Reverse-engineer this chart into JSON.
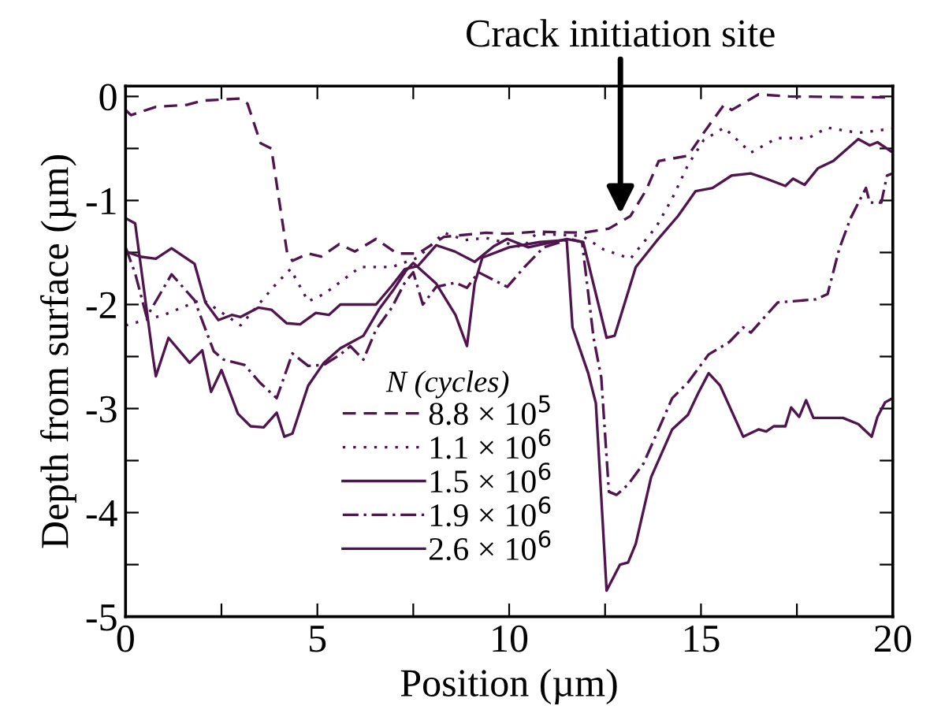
{
  "chart_data": {
    "type": "line",
    "xlabel": "Position (µm)",
    "ylabel": "Depth from surface (µm)",
    "legend_title": "N (cycles)",
    "legend": "bottom",
    "grid": false,
    "marker": "none",
    "xlim": [
      0,
      20
    ],
    "ylim": [
      -5,
      0.1
    ],
    "xticks": [
      0,
      {
        "value": 2.5,
        "label": null
      },
      5,
      {
        "value": 7.5,
        "label": null
      },
      10,
      {
        "value": 12.5,
        "label": null
      },
      15,
      {
        "value": 17.5,
        "label": null
      },
      20
    ],
    "yticks": [
      0,
      {
        "value": -0.5,
        "label": null
      },
      -1,
      {
        "value": -1.5,
        "label": null
      },
      -2,
      {
        "value": -2.5,
        "label": null
      },
      -3,
      {
        "value": -3.5,
        "label": null
      },
      -4,
      {
        "value": -4.5,
        "label": null
      },
      -5
    ],
    "annotations": [
      {
        "text": "Crack initiation site",
        "x": 12.9,
        "y": -1.13
      }
    ],
    "series": [
      {
        "name": "8.8 × 10$^{5}$",
        "color": "#50144f",
        "line_style": "dashed",
        "x": [
          0,
          0.14,
          0.79,
          1.61,
          2.02,
          2.98,
          3.18,
          3.52,
          3.8,
          4.21,
          4.35,
          4.76,
          5.1,
          5.57,
          5.98,
          6.53,
          7.08,
          7.62,
          8.3,
          9.4,
          9.95,
          10.7,
          11.93,
          12.6,
          13.16,
          13.57,
          13.9,
          14.66,
          15.07,
          15.6,
          15.8,
          16.5,
          17.3,
          20
        ],
        "values": [
          -0.13,
          -0.18,
          -0.1,
          -0.08,
          -0.04,
          -0.02,
          -0.07,
          -0.45,
          -0.5,
          -1.5,
          -1.58,
          -1.51,
          -1.54,
          -1.42,
          -1.49,
          -1.37,
          -1.51,
          -1.51,
          -1.35,
          -1.31,
          -1.32,
          -1.3,
          -1.31,
          -1.27,
          -1.15,
          -0.9,
          -0.62,
          -0.57,
          -0.35,
          -0.08,
          -0.13,
          0.02,
          0.0,
          -0.01
        ]
      },
      {
        "name": "1.1 × 10$^{6}$",
        "color": "#50144f",
        "line_style": "dotted",
        "x": [
          0,
          1.0,
          2.0,
          3.0,
          3.93,
          4.3,
          4.76,
          5.17,
          6.12,
          6.94,
          7.62,
          8.3,
          8.85,
          9.4,
          10.36,
          10.7,
          11.9,
          12.46,
          13.16,
          13.84,
          14.25,
          14.66,
          15.07,
          15.6,
          16.3,
          16.98,
          17.8,
          18.3,
          19.1,
          20
        ],
        "values": [
          -2.2,
          -2.1,
          -1.95,
          -2.2,
          -1.8,
          -1.66,
          -1.97,
          -1.9,
          -1.64,
          -1.64,
          -1.55,
          -1.31,
          -1.38,
          -1.36,
          -1.45,
          -1.32,
          -1.34,
          -1.47,
          -1.56,
          -1.25,
          -0.98,
          -0.66,
          -0.42,
          -0.3,
          -0.54,
          -0.4,
          -0.4,
          -0.3,
          -0.35,
          -0.31
        ]
      },
      {
        "name": "1.5 × 10$^{6}$",
        "color": "#50144f",
        "line_style": "solid",
        "x": [
          0,
          0.38,
          0.79,
          1.2,
          1.8,
          2.08,
          2.42,
          2.77,
          3.0,
          3.46,
          3.8,
          4.2,
          4.55,
          4.96,
          5.3,
          5.6,
          6.3,
          6.53,
          6.94,
          7.28,
          7.62,
          8.1,
          8.58,
          9.1,
          9.6,
          9.95,
          10.5,
          11.5,
          11.93,
          12.54,
          12.75,
          13.3,
          13.84,
          14.4,
          14.86,
          15.3,
          15.8,
          16.3,
          16.7,
          17.2,
          17.4,
          17.7,
          18.05,
          18.45,
          19.1,
          19.4,
          19.6,
          20
        ],
        "values": [
          -1.49,
          -1.54,
          -1.56,
          -1.46,
          -1.61,
          -1.98,
          -2.15,
          -2.1,
          -2.12,
          -2.03,
          -2.05,
          -2.18,
          -2.19,
          -2.08,
          -2.1,
          -2.0,
          -2.0,
          -2.0,
          -1.82,
          -1.66,
          -1.63,
          -1.43,
          -1.49,
          -1.59,
          -1.44,
          -1.37,
          -1.45,
          -1.37,
          -1.4,
          -2.32,
          -2.3,
          -1.64,
          -1.39,
          -1.15,
          -0.91,
          -0.88,
          -0.76,
          -0.74,
          -0.79,
          -0.86,
          -0.79,
          -0.85,
          -0.69,
          -0.62,
          -0.41,
          -0.47,
          -0.44,
          -0.54
        ]
      },
      {
        "name": "1.9 × 10$^{6}$",
        "color": "#50144f",
        "line_style": "dashdot",
        "x": [
          0,
          0.25,
          0.55,
          1.2,
          1.8,
          2.3,
          2.56,
          3.1,
          3.5,
          3.94,
          4.35,
          4.76,
          5.17,
          5.6,
          5.86,
          6.2,
          6.53,
          6.94,
          7.28,
          7.5,
          7.75,
          8.1,
          8.6,
          8.9,
          9.2,
          9.95,
          10.4,
          10.9,
          11.6,
          11.9,
          12.2,
          12.4,
          12.6,
          12.8,
          13.1,
          13.5,
          14.25,
          14.66,
          15.2,
          15.74,
          16.1,
          16.3,
          17.0,
          18.0,
          18.3,
          18.6,
          18.9,
          19.3,
          19.4,
          19.7,
          19.85,
          20
        ],
        "values": [
          -1.45,
          -1.7,
          -2.12,
          -1.71,
          -1.96,
          -2.45,
          -2.53,
          -2.58,
          -2.75,
          -2.9,
          -2.47,
          -2.59,
          -2.58,
          -2.48,
          -2.4,
          -2.53,
          -2.24,
          -2.03,
          -1.79,
          -1.69,
          -2.0,
          -1.83,
          -1.79,
          -1.84,
          -1.69,
          -1.83,
          -1.64,
          -1.45,
          -1.37,
          -1.4,
          -2.32,
          -2.7,
          -3.8,
          -3.83,
          -3.73,
          -3.53,
          -2.9,
          -2.75,
          -2.48,
          -2.36,
          -2.22,
          -2.27,
          -1.98,
          -1.95,
          -1.9,
          -1.47,
          -1.17,
          -0.88,
          -1.02,
          -1.02,
          -0.76,
          -0.74
        ]
      },
      {
        "name": "2.6 × 10$^{6}$",
        "color": "#50144f",
        "line_style": "solid",
        "x": [
          0,
          0.25,
          0.72,
          0.79,
          1.12,
          1.67,
          2.0,
          2.23,
          2.5,
          2.93,
          3.26,
          3.6,
          3.94,
          4.14,
          4.35,
          4.76,
          5.17,
          5.6,
          6.2,
          6.6,
          7.0,
          7.3,
          7.5,
          8.1,
          8.6,
          8.9,
          9.1,
          9.3,
          10.0,
          10.8,
          11.5,
          11.65,
          12.06,
          12.26,
          12.54,
          12.89,
          13.1,
          13.3,
          13.7,
          14.25,
          14.66,
          14.93,
          15.2,
          15.5,
          16.1,
          16.5,
          16.7,
          16.9,
          17.2,
          17.35,
          17.56,
          17.74,
          17.93,
          18.7,
          19.1,
          19.45,
          19.6,
          19.8,
          20
        ],
        "values": [
          -1.17,
          -1.22,
          -2.52,
          -2.69,
          -2.32,
          -2.56,
          -2.44,
          -2.84,
          -2.63,
          -3.05,
          -3.17,
          -3.18,
          -3.04,
          -3.27,
          -3.24,
          -2.78,
          -2.56,
          -2.42,
          -2.3,
          -2.05,
          -1.85,
          -1.68,
          -1.6,
          -1.8,
          -2.1,
          -2.4,
          -1.8,
          -1.55,
          -1.45,
          -1.4,
          -1.38,
          -2.22,
          -2.66,
          -2.95,
          -4.75,
          -4.5,
          -4.48,
          -4.3,
          -3.66,
          -3.2,
          -3.06,
          -2.85,
          -2.66,
          -2.78,
          -3.27,
          -3.2,
          -3.22,
          -3.17,
          -3.17,
          -2.99,
          -3.08,
          -2.92,
          -3.09,
          -3.09,
          -3.15,
          -3.27,
          -3.08,
          -2.94,
          -2.9
        ]
      }
    ]
  }
}
